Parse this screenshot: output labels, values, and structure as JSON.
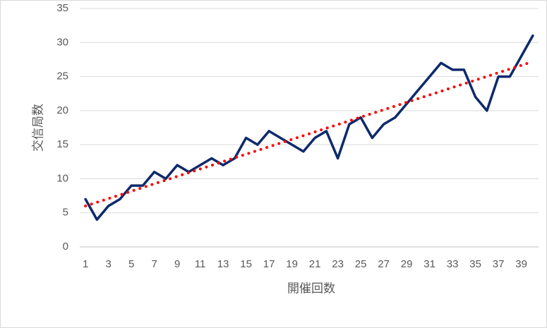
{
  "chart_data": {
    "type": "line",
    "x_label": "開催回数",
    "y_label": "交信局数",
    "categories": [
      "1",
      null,
      "3",
      null,
      "5",
      null,
      "7",
      null,
      "9",
      null,
      "11",
      null,
      "13",
      null,
      "15",
      null,
      "17",
      null,
      "19",
      null,
      "21",
      null,
      "23",
      null,
      "25",
      null,
      "27",
      null,
      "29",
      null,
      "31",
      null,
      "33",
      null,
      "35",
      null,
      "37",
      null,
      "39",
      null
    ],
    "series": [
      {
        "color": "#0d2a6b",
        "values": [
          7,
          4,
          6,
          7,
          9,
          9,
          11,
          10,
          12,
          11,
          12,
          13,
          12,
          13,
          16,
          15,
          17,
          16,
          15,
          14,
          16,
          17,
          13,
          18,
          19,
          16,
          18,
          19,
          21,
          23,
          25,
          27,
          26,
          26,
          22,
          20,
          25,
          25,
          28,
          31
        ]
      }
    ],
    "trendline": {
      "color": "#ff0000",
      "values": [
        6.0,
        27.2
      ]
    },
    "ylim": [
      0,
      35
    ],
    "yticks": [
      0,
      5,
      10,
      15,
      20,
      25,
      30,
      35
    ],
    "grid": true
  }
}
